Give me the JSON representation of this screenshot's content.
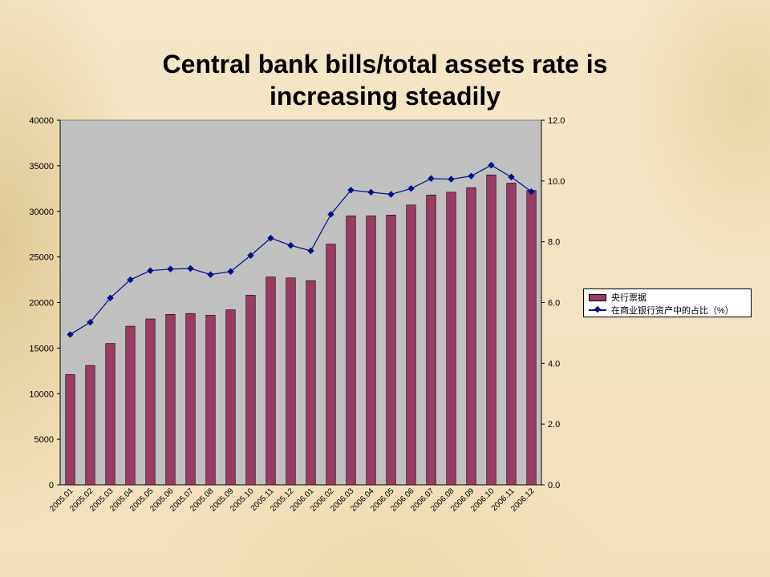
{
  "slide": {
    "title_line1": "Central bank bills/total assets rate is",
    "title_line2": "increasing steadily"
  },
  "colors": {
    "bar": "#9b3a63",
    "line": "#00108a",
    "plot_bg": "#c0c0c0"
  },
  "chart_data": {
    "type": "bar",
    "categories": [
      "2005.01",
      "2005.02",
      "2005.03",
      "2005.04",
      "2005.05",
      "2005.06",
      "2005.07",
      "2005.08",
      "2005.09",
      "2005.10",
      "2005.11",
      "2005.12",
      "2006.01",
      "2006.02",
      "2006.03",
      "2006.04",
      "2006.05",
      "2006.06",
      "2006.07",
      "2006.08",
      "2006.09",
      "2006.10",
      "2006.11",
      "2006.12"
    ],
    "series": [
      {
        "name": "央行票据",
        "kind": "bar",
        "axis": "left",
        "values": [
          12100,
          13100,
          15500,
          17400,
          18200,
          18700,
          18800,
          18600,
          19200,
          20800,
          22800,
          22700,
          22400,
          26400,
          29500,
          29500,
          29600,
          30700,
          31800,
          32100,
          32600,
          34000,
          33100,
          32300
        ]
      },
      {
        "name": "在商业银行资产中的占比（%）",
        "kind": "line",
        "axis": "right",
        "values": [
          4.95,
          5.35,
          6.15,
          6.75,
          7.05,
          7.1,
          7.12,
          6.92,
          7.02,
          7.55,
          8.12,
          7.88,
          7.7,
          8.9,
          9.7,
          9.63,
          9.56,
          9.75,
          10.08,
          10.06,
          10.16,
          10.52,
          10.13,
          9.65
        ]
      }
    ],
    "y_left": {
      "min": 0,
      "max": 40000,
      "ticks": [
        "0",
        "5000",
        "10000",
        "15000",
        "20000",
        "25000",
        "30000",
        "35000",
        "40000"
      ]
    },
    "y_right": {
      "min": 0,
      "max": 12,
      "ticks": [
        "0.0",
        "2.0",
        "4.0",
        "6.0",
        "8.0",
        "10.0",
        "12.0"
      ]
    },
    "grid": false,
    "legend_position": "right"
  }
}
